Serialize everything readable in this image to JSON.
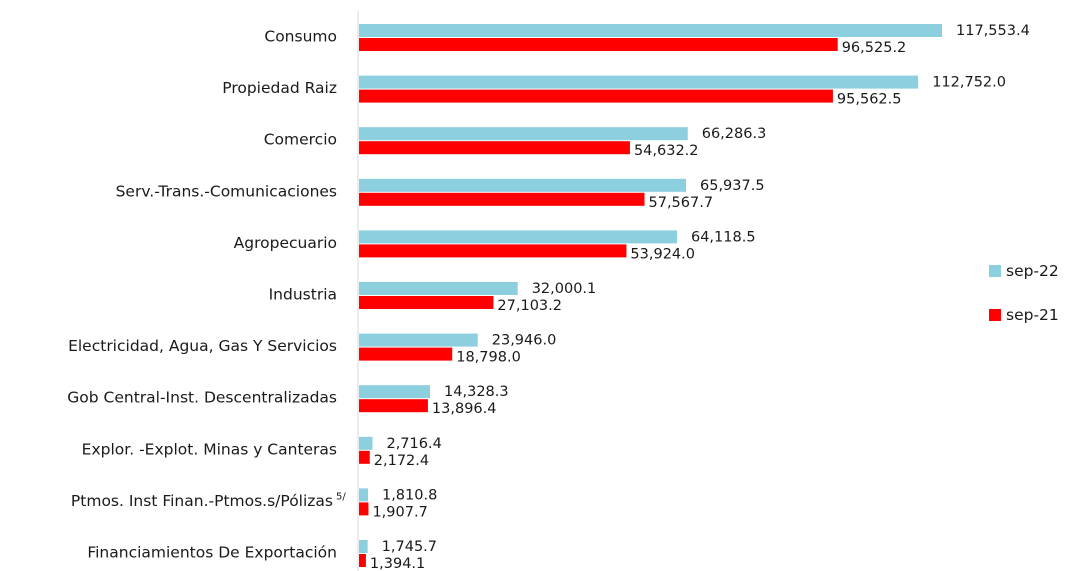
{
  "chart_data": {
    "type": "bar",
    "orientation": "horizontal",
    "categories": [
      "Consumo",
      "Propiedad Raiz",
      "Comercio",
      "Serv.-Trans.-Comunicaciones",
      "Agropecuario",
      "Industria",
      "Electricidad, Agua, Gas Y Servicios",
      "Gob Central-Inst. Descentralizadas",
      "Explor. -Explot. Minas y Canteras",
      "Ptmos. Inst Finan.-Ptmos.s/Pólizas",
      "Financiamientos De Exportación"
    ],
    "category_superscripts": [
      "",
      "",
      "",
      "",
      "",
      "",
      "",
      "",
      "",
      "5/",
      ""
    ],
    "series": [
      {
        "name": "sep-22",
        "color": "#8ccfdf",
        "values": [
          117553.4,
          112752.0,
          66286.3,
          65937.5,
          64118.5,
          32000.1,
          23946.0,
          14328.3,
          2716.4,
          1810.8,
          1745.7
        ],
        "labels": [
          "117,553.4",
          "112,752.0",
          "66,286.3",
          "65,937.5",
          "64,118.5",
          "32,000.1",
          "23,946.0",
          "14,328.3",
          "2,716.4",
          "1,810.8",
          "1,745.7"
        ]
      },
      {
        "name": "sep-21",
        "color": "#ff0000",
        "values": [
          96525.2,
          95562.5,
          54632.2,
          57567.7,
          53924.0,
          27103.2,
          18798.0,
          13896.4,
          2172.4,
          1907.7,
          1394.1
        ],
        "labels": [
          "96,525.2",
          "95,562.5",
          "54,632.2",
          "57,567.7",
          "53,924.0",
          "27,103.2",
          "18,798.0",
          "13,896.4",
          "2,172.4",
          "1,907.7",
          "1,394.1"
        ]
      }
    ],
    "xlim": [
      0,
      118000
    ],
    "grid": false,
    "legend": "right"
  }
}
